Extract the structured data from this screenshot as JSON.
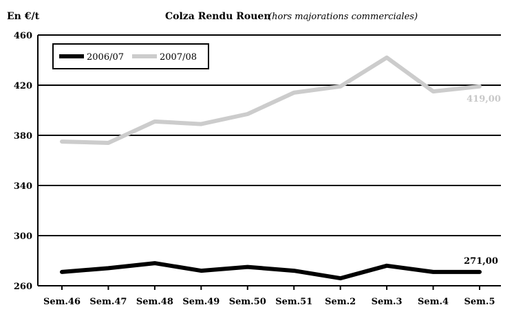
{
  "chart_data": {
    "type": "line",
    "unit_label": "En €/t",
    "title": "Colza Rendu Rouen",
    "subtitle": "(hors majorations commerciales)",
    "categories": [
      "Sem.46",
      "Sem.47",
      "Sem.48",
      "Sem.49",
      "Sem.50",
      "Sem.51",
      "Sem.2",
      "Sem.3",
      "Sem.4",
      "Sem.5"
    ],
    "ylim": [
      260,
      460
    ],
    "yticks": [
      260,
      300,
      340,
      380,
      420,
      460
    ],
    "grid": true,
    "legend_position": "top-left",
    "series": [
      {
        "name": "2006/07",
        "color": "#000000",
        "values": [
          271,
          274,
          278,
          272,
          275,
          272,
          266,
          276,
          271,
          271
        ],
        "end_label": "271,00"
      },
      {
        "name": "2007/08",
        "color": "#cccccc",
        "values": [
          375,
          374,
          391,
          389,
          397,
          414,
          419,
          442,
          415,
          419
        ],
        "end_label": "419,00"
      }
    ]
  }
}
